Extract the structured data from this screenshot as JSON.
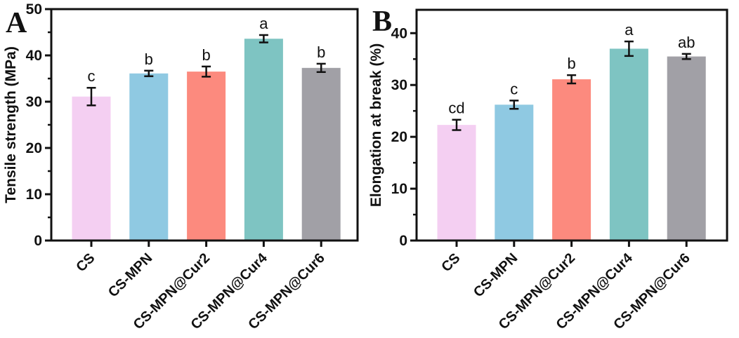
{
  "figure": {
    "background": "#ffffff",
    "axis_color": "#111111",
    "text_color": "#111111",
    "error_bar_color": "#111111",
    "bar_colors": [
      "#f4cff2",
      "#8fc9e2",
      "#fc8a7e",
      "#7ec4c2",
      "#a1a0a6"
    ]
  },
  "chart_data": [
    {
      "type": "bar",
      "panel_label": "A",
      "title": "",
      "xlabel": "",
      "ylabel": "Tensile strength (MPa)",
      "categories": [
        "CS",
        "CS-MPN",
        "CS-MPN@Cur2",
        "CS-MPN@Cur4",
        "CS-MPN@Cur6"
      ],
      "values": [
        31.1,
        36.1,
        36.5,
        43.6,
        37.3
      ],
      "errors": [
        1.9,
        0.6,
        1.1,
        0.8,
        0.9
      ],
      "significance_labels": [
        "c",
        "b",
        "b",
        "a",
        "b"
      ],
      "ylim": [
        0,
        50
      ],
      "yticks": [
        0,
        10,
        20,
        30,
        40,
        50
      ],
      "yticks_minor": [
        5,
        15,
        25,
        35,
        45
      ],
      "grid": false,
      "legend": "none"
    },
    {
      "type": "bar",
      "panel_label": "B",
      "title": "",
      "xlabel": "",
      "ylabel": "Elongation at break (%)",
      "categories": [
        "CS",
        "CS-MPN",
        "CS-MPN@Cur2",
        "CS-MPN@Cur4",
        "CS-MPN@Cur6"
      ],
      "values": [
        22.3,
        26.2,
        31.1,
        37.0,
        35.5
      ],
      "errors": [
        1.0,
        0.8,
        0.8,
        1.4,
        0.5
      ],
      "significance_labels": [
        "cd",
        "c",
        "b",
        "a",
        "ab"
      ],
      "ylim": [
        0,
        44.5
      ],
      "yticks": [
        0,
        10,
        20,
        30,
        40
      ],
      "yticks_minor": [
        5,
        15,
        25,
        35
      ],
      "grid": false,
      "legend": "none"
    }
  ]
}
